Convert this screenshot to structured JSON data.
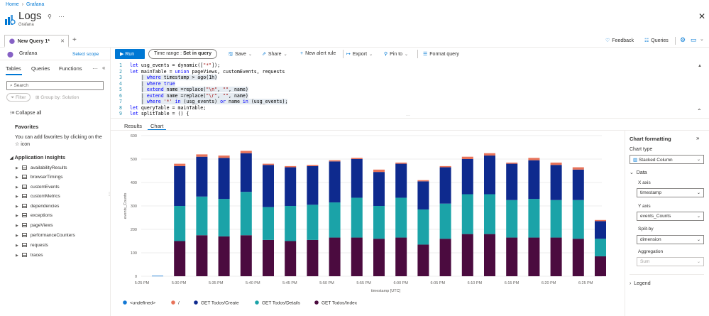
{
  "breadcrumb": {
    "home": "Home",
    "grafana": "Grafana"
  },
  "header": {
    "title": "Logs",
    "subtitle": "Grafana"
  },
  "tabs": {
    "query_tab": "New Query 1*"
  },
  "top_actions": {
    "feedback": "Feedback",
    "queries": "Queries"
  },
  "scope": {
    "name": "Grafana",
    "select_scope": "Select scope"
  },
  "toolbar": {
    "run": "Run",
    "time_range_label": "Time range :",
    "time_range_value": "Set in query",
    "save": "Save",
    "share": "Share",
    "new_alert": "New alert rule",
    "export": "Export",
    "pin_to": "Pin to",
    "format": "Format query"
  },
  "left": {
    "tabs": [
      "Tables",
      "Queries",
      "Functions"
    ],
    "search_placeholder": "Search",
    "filter": "Filter",
    "group_by": "Group by: Solution",
    "collapse_all": "Collapse all",
    "favorites_title": "Favorites",
    "favorites_hint": "You can add favorites by clicking on the ☆ icon",
    "section": "Application Insights",
    "tables": [
      "availabilityResults",
      "browserTimings",
      "customEvents",
      "customMetrics",
      "dependencies",
      "exceptions",
      "pageViews",
      "performanceCounters",
      "requests",
      "traces"
    ]
  },
  "editor": {
    "lines": [
      {
        "n": "1",
        "t": "let usg_events = dynamic([\"*\"]);"
      },
      {
        "n": "2",
        "t": "let mainTable = union pageViews, customEvents, requests"
      },
      {
        "n": "3",
        "t": "    | where timestamp > ago(1h)"
      },
      {
        "n": "4",
        "t": "    | where true"
      },
      {
        "n": "5",
        "t": "    | extend name =replace(\"\\n\", \"\", name)"
      },
      {
        "n": "6",
        "t": "    | extend name =replace(\"\\r\", \"\", name)"
      },
      {
        "n": "7",
        "t": "    | where '*' in (usg_events) or name in (usg_events);"
      },
      {
        "n": "8",
        "t": "let queryTable = mainTable;"
      },
      {
        "n": "9",
        "t": "let splitTable = () {"
      }
    ]
  },
  "results_tabs": {
    "results": "Results",
    "chart": "Chart"
  },
  "chart_data": {
    "type": "bar",
    "stacked": true,
    "xlabel": "timestamp [UTC]",
    "ylabel": "events_Counts",
    "ylim": [
      0,
      600
    ],
    "yticks": [
      0,
      100,
      200,
      300,
      400,
      500,
      600
    ],
    "tick_labels": [
      "5:25 PM",
      "5:30 PM",
      "5:35 PM",
      "5:40 PM",
      "5:45 PM",
      "5:50 PM",
      "5:55 PM",
      "6:00 PM",
      "6:05 PM",
      "6:10 PM",
      "6:15 PM",
      "6:20 PM",
      "6:25 PM"
    ],
    "categories": [
      "5:27",
      "5:30",
      "5:33",
      "5:36",
      "5:39",
      "5:42",
      "5:45",
      "5:48",
      "5:51",
      "5:54",
      "5:57",
      "6:00",
      "6:03",
      "6:06",
      "6:09",
      "6:12",
      "6:15",
      "6:18",
      "6:21",
      "6:24",
      "6:27"
    ],
    "series": [
      {
        "name": "GET Todos/Index",
        "color": "#4b0b3f",
        "values": [
          0,
          150,
          175,
          170,
          175,
          155,
          150,
          155,
          165,
          165,
          160,
          165,
          135,
          160,
          180,
          180,
          165,
          165,
          165,
          160,
          85
        ]
      },
      {
        "name": "GET Todos/Details",
        "color": "#1ba3a8",
        "values": [
          0,
          150,
          165,
          160,
          185,
          140,
          150,
          150,
          150,
          170,
          140,
          170,
          150,
          150,
          170,
          170,
          160,
          165,
          160,
          165,
          75
        ]
      },
      {
        "name": "GET Todos/Create",
        "color": "#0e2a8e",
        "values": [
          0,
          170,
          170,
          175,
          165,
          180,
          165,
          165,
          175,
          165,
          145,
          145,
          120,
          155,
          150,
          165,
          155,
          165,
          150,
          130,
          75
        ]
      },
      {
        "name": "/",
        "color": "#e8735a",
        "values": [
          0,
          10,
          10,
          10,
          10,
          5,
          5,
          5,
          5,
          5,
          10,
          5,
          5,
          5,
          10,
          10,
          5,
          10,
          10,
          10,
          5
        ]
      },
      {
        "name": "<undefined>",
        "color": "#1378d4",
        "values": [
          2,
          0,
          0,
          0,
          0,
          0,
          0,
          0,
          0,
          0,
          0,
          0,
          0,
          0,
          0,
          0,
          0,
          0,
          0,
          0,
          0
        ]
      }
    ],
    "legend_order": [
      "<undefined>",
      "/",
      "GET Todos/Create",
      "GET Todos/Details",
      "GET Todos/Index"
    ],
    "legend_position": "bottom-left"
  },
  "formatting": {
    "title": "Chart formatting",
    "chart_type_label": "Chart type",
    "chart_type": "Stacked Column",
    "data_label": "Data",
    "x_axis_label": "X axis",
    "x_axis": "timestamp",
    "y_axis_label": "Y axis",
    "y_axis": "events_Counts",
    "split_label": "Split-by",
    "split": "dimension",
    "agg_label": "Aggregation",
    "agg": "Sum",
    "legend_label": "Legend"
  }
}
